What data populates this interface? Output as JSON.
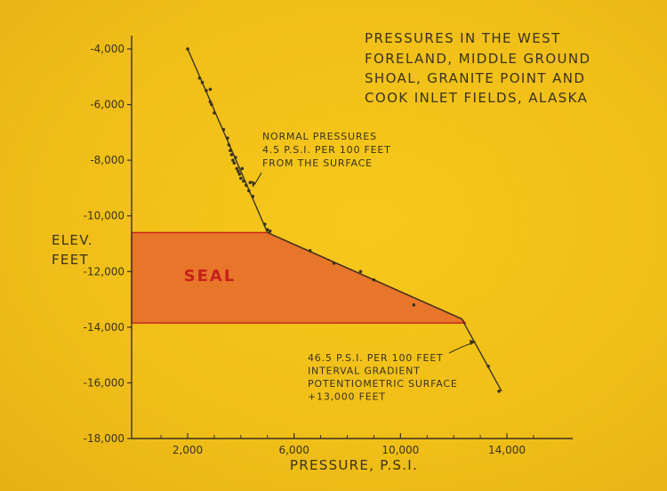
{
  "chart_data": {
    "type": "scatter",
    "title_lines": [
      "PRESSURES IN THE WEST",
      "FORELAND, MIDDLE GROUND",
      "SHOAL, GRANITE POINT AND",
      "COOK INLET FIELDS, ALASKA"
    ],
    "xlabel": "PRESSURE, P.S.I.",
    "ylabel_lines": [
      "ELEV.",
      "FEET"
    ],
    "xlim": [
      0,
      16000
    ],
    "ylim": [
      -18000,
      -3000
    ],
    "x_ticks": [
      {
        "value": 2000,
        "label": "2,000"
      },
      {
        "value": 6000,
        "label": "6,000"
      },
      {
        "value": 10000,
        "label": "10,000"
      },
      {
        "value": 14000,
        "label": "14,000"
      }
    ],
    "y_ticks": [
      {
        "value": -4000,
        "label": "-4,000"
      },
      {
        "value": -6000,
        "label": "-6,000"
      },
      {
        "value": -8000,
        "label": "-8,000"
      },
      {
        "value": -10000,
        "label": "-10,000"
      },
      {
        "value": -12000,
        "label": "-12,000"
      },
      {
        "value": -14000,
        "label": "-14,000"
      },
      {
        "value": -16000,
        "label": "-16,000"
      },
      {
        "value": -18000,
        "label": "-18,000"
      }
    ],
    "seal": {
      "label": "SEAL",
      "top": -10600,
      "bottom": -13850
    },
    "gradient_line": [
      {
        "x": 2000,
        "y": -4000
      },
      {
        "x": 5000,
        "y": -10600
      },
      {
        "x": 12300,
        "y": -13700
      },
      {
        "x": 13800,
        "y": -16300
      }
    ],
    "points": [
      {
        "x": 2000,
        "y": -4000
      },
      {
        "x": 2450,
        "y": -5050
      },
      {
        "x": 2550,
        "y": -5200
      },
      {
        "x": 2700,
        "y": -5500
      },
      {
        "x": 2850,
        "y": -5450
      },
      {
        "x": 2850,
        "y": -5900
      },
      {
        "x": 2900,
        "y": -6000
      },
      {
        "x": 3000,
        "y": -6300
      },
      {
        "x": 3350,
        "y": -6900
      },
      {
        "x": 3500,
        "y": -7200
      },
      {
        "x": 3550,
        "y": -7450
      },
      {
        "x": 3600,
        "y": -7650
      },
      {
        "x": 3650,
        "y": -7800
      },
      {
        "x": 3700,
        "y": -8000
      },
      {
        "x": 3750,
        "y": -8100
      },
      {
        "x": 3800,
        "y": -7900
      },
      {
        "x": 3850,
        "y": -8300
      },
      {
        "x": 3900,
        "y": -8400
      },
      {
        "x": 3950,
        "y": -8500
      },
      {
        "x": 4000,
        "y": -8650
      },
      {
        "x": 4050,
        "y": -8300
      },
      {
        "x": 4100,
        "y": -8750
      },
      {
        "x": 4200,
        "y": -8900
      },
      {
        "x": 4300,
        "y": -9100
      },
      {
        "x": 4350,
        "y": -8800
      },
      {
        "x": 4450,
        "y": -9300
      },
      {
        "x": 4900,
        "y": -10300
      },
      {
        "x": 5000,
        "y": -10500
      },
      {
        "x": 5100,
        "y": -10550
      },
      {
        "x": 6600,
        "y": -11250
      },
      {
        "x": 7500,
        "y": -11700
      },
      {
        "x": 8500,
        "y": -12000
      },
      {
        "x": 9000,
        "y": -12300
      },
      {
        "x": 10500,
        "y": -13200
      },
      {
        "x": 13300,
        "y": -15400
      },
      {
        "x": 13700,
        "y": -16300
      }
    ],
    "annotations": [
      {
        "lines": [
          "NORMAL PRESSURES",
          "4.5 P.S.I. PER 100 FEET",
          "FROM THE SURFACE"
        ]
      },
      {
        "lines": [
          "46.5 P.S.I. PER 100 FEET",
          "INTERVAL GRADIENT",
          "POTENTIOMETRIC SURFACE",
          "+13,000 FEET"
        ]
      }
    ],
    "colors": {
      "background": "#f2c11a",
      "seal_fill": "#e8762a",
      "seal_border": "#c8281a",
      "seal_text": "#c8201a",
      "ink": "#3a3320"
    }
  }
}
